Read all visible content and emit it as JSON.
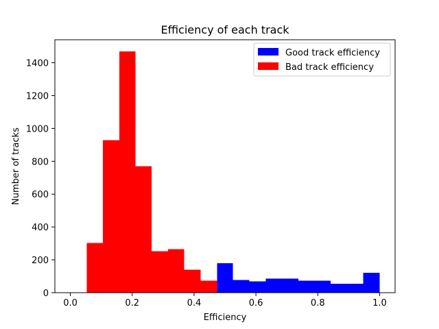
{
  "chart_data": {
    "type": "bar",
    "title": "Efficiency of each track",
    "xlabel": "Efficiency",
    "ylabel": "Number of tracks",
    "xlim": [
      -0.05,
      1.05
    ],
    "ylim": [
      0,
      1540
    ],
    "xticks": [
      "0.0",
      "0.2",
      "0.4",
      "0.6",
      "0.8",
      "1.0"
    ],
    "yticks": [
      "0",
      "200",
      "400",
      "600",
      "800",
      "1000",
      "1200",
      "1400"
    ],
    "grid": false,
    "legend_position": "top-right",
    "series": [
      {
        "name": "Good track efficiency",
        "color": "#0000ff",
        "bins": [
          0.474,
          0.526,
          0.579,
          0.632,
          0.684,
          0.737,
          0.789,
          0.842,
          0.895,
          0.947,
          1.0
        ],
        "values": [
          180,
          78,
          68,
          85,
          85,
          72,
          72,
          55,
          55,
          122
        ]
      },
      {
        "name": "Bad track efficiency",
        "color": "#ff0000",
        "bins": [
          0.053,
          0.105,
          0.158,
          0.211,
          0.263,
          0.316,
          0.368,
          0.421,
          0.474
        ],
        "values": [
          302,
          928,
          1470,
          770,
          253,
          265,
          140,
          72
        ]
      }
    ]
  }
}
